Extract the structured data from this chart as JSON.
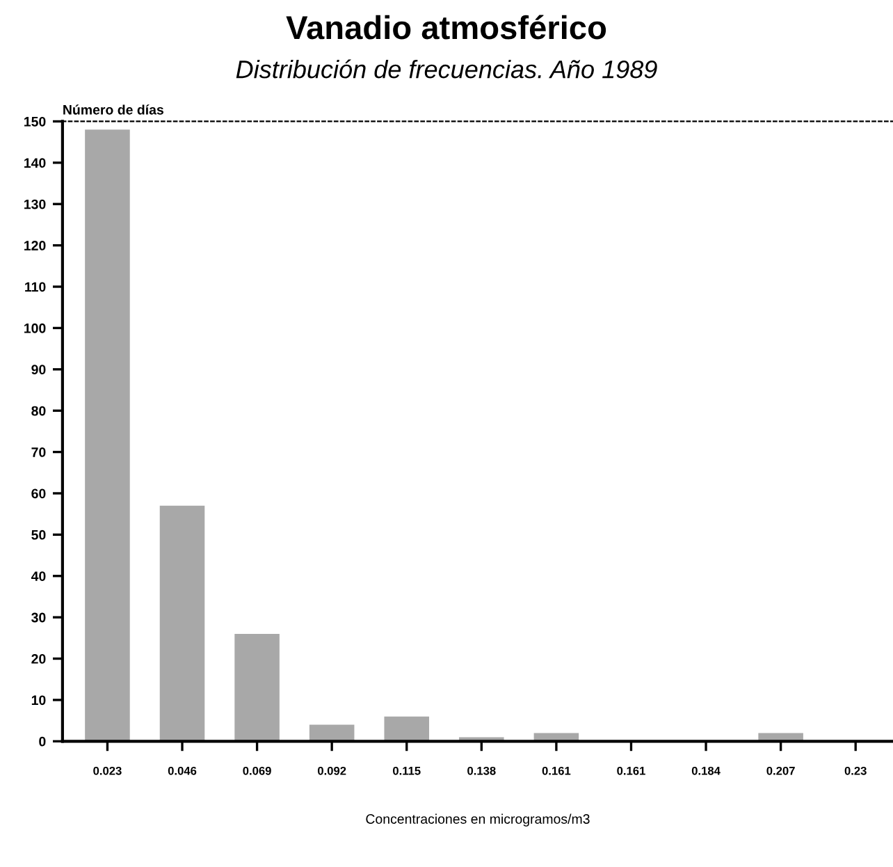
{
  "chart_data": {
    "type": "bar",
    "title": "Vanadio atmosférico",
    "subtitle": "Distribución de frecuencias. Año 1989",
    "ylabel": "Número de días",
    "xlabel": "Concentraciones en microgramos/m3",
    "categories": [
      "0.023",
      "0.046",
      "0.069",
      "0.092",
      "0.115",
      "0.138",
      "0.161",
      "0.161",
      "0.184",
      "0.207",
      "0.23"
    ],
    "values": [
      148,
      57,
      26,
      4,
      6,
      1,
      2,
      0,
      0,
      2,
      0
    ],
    "color": "#a8a8a8",
    "ylim": [
      0,
      150
    ],
    "yticks": [
      0,
      10,
      20,
      30,
      40,
      50,
      60,
      70,
      80,
      90,
      100,
      110,
      120,
      130,
      140,
      150
    ],
    "grid": false,
    "legend": false
  }
}
